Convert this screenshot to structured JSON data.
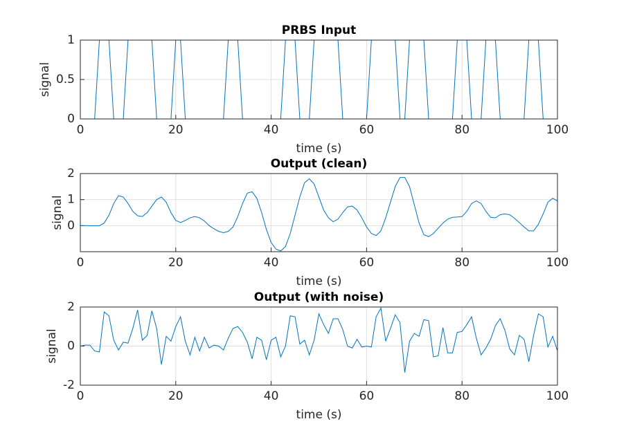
{
  "chart_data": [
    {
      "type": "line",
      "title": "PRBS Input",
      "xlabel": "time (s)",
      "ylabel": "signal",
      "color": "#0072bd",
      "grid": true,
      "xlim": [
        0,
        100
      ],
      "xticks": [
        0,
        20,
        40,
        60,
        80,
        100
      ],
      "ylim": [
        0,
        1
      ],
      "yticks": [
        0,
        0.5,
        1
      ],
      "x": [
        0,
        1,
        2,
        3,
        4,
        5,
        6,
        7,
        8,
        9,
        10,
        11,
        12,
        13,
        14,
        15,
        16,
        17,
        18,
        19,
        20,
        21,
        22,
        23,
        24,
        25,
        26,
        27,
        28,
        29,
        30,
        31,
        32,
        33,
        34,
        35,
        36,
        37,
        38,
        39,
        40,
        41,
        42,
        43,
        44,
        45,
        46,
        47,
        48,
        49,
        50,
        51,
        52,
        53,
        54,
        55,
        56,
        57,
        58,
        59,
        60,
        61,
        62,
        63,
        64,
        65,
        66,
        67,
        68,
        69,
        70,
        71,
        72,
        73,
        74,
        75,
        76,
        77,
        78,
        79,
        80,
        81,
        82,
        83,
        84,
        85,
        86,
        87,
        88,
        89,
        90,
        91,
        92,
        93,
        94,
        95,
        96,
        97,
        98,
        99,
        100
      ],
      "values": [
        0,
        0,
        0,
        0,
        1,
        1,
        1,
        0,
        0,
        0,
        1,
        1,
        1,
        1,
        1,
        1,
        0,
        0,
        0,
        0,
        1,
        1,
        0,
        0,
        0,
        0,
        0,
        0,
        0,
        0,
        0,
        1,
        1,
        1,
        0,
        0,
        0,
        0,
        0,
        0,
        0,
        0,
        0,
        1,
        1,
        1,
        0,
        0,
        0,
        1,
        1,
        1,
        1,
        1,
        1,
        0,
        0,
        0,
        0,
        0,
        0,
        1,
        1,
        1,
        1,
        1,
        1,
        0,
        0,
        1,
        1,
        1,
        1,
        0,
        0,
        0,
        0,
        0,
        0,
        1,
        1,
        1,
        0,
        0,
        0,
        1,
        1,
        1,
        0,
        0,
        0,
        0,
        0,
        0,
        1,
        1,
        1,
        0,
        0,
        0,
        0
      ]
    },
    {
      "type": "line",
      "title": "Output (clean)",
      "xlabel": "time (s)",
      "ylabel": "signal",
      "color": "#0072bd",
      "grid": true,
      "xlim": [
        0,
        100
      ],
      "xticks": [
        0,
        20,
        40,
        60,
        80,
        100
      ],
      "ylim": [
        -1,
        2
      ],
      "yticks": [
        0,
        1,
        2
      ],
      "x": [
        0,
        1,
        2,
        3,
        4,
        5,
        6,
        7,
        8,
        9,
        10,
        11,
        12,
        13,
        14,
        15,
        16,
        17,
        18,
        19,
        20,
        21,
        22,
        23,
        24,
        25,
        26,
        27,
        28,
        29,
        30,
        31,
        32,
        33,
        34,
        35,
        36,
        37,
        38,
        39,
        40,
        41,
        42,
        43,
        44,
        45,
        46,
        47,
        48,
        49,
        50,
        51,
        52,
        53,
        54,
        55,
        56,
        57,
        58,
        59,
        60,
        61,
        62,
        63,
        64,
        65,
        66,
        67,
        68,
        69,
        70,
        71,
        72,
        73,
        74,
        75,
        76,
        77,
        78,
        79,
        80,
        81,
        82,
        83,
        84,
        85,
        86,
        87,
        88,
        89,
        90,
        91,
        92,
        93,
        94,
        95,
        96,
        97,
        98,
        99,
        100
      ],
      "values": [
        0,
        0,
        0,
        0,
        0,
        0.1,
        0.4,
        0.85,
        1.15,
        1.1,
        0.85,
        0.55,
        0.38,
        0.35,
        0.5,
        0.75,
        1.0,
        1.1,
        0.9,
        0.5,
        0.2,
        0.12,
        0.2,
        0.3,
        0.35,
        0.3,
        0.18,
        0.0,
        -0.12,
        -0.22,
        -0.27,
        -0.22,
        -0.05,
        0.35,
        0.85,
        1.25,
        1.3,
        1.05,
        0.5,
        -0.15,
        -0.65,
        -0.9,
        -0.97,
        -0.8,
        -0.3,
        0.4,
        1.1,
        1.65,
        1.8,
        1.6,
        1.1,
        0.6,
        0.3,
        0.15,
        0.25,
        0.5,
        0.72,
        0.75,
        0.6,
        0.3,
        -0.05,
        -0.3,
        -0.38,
        -0.2,
        0.3,
        0.9,
        1.5,
        1.85,
        1.85,
        1.5,
        0.8,
        0.1,
        -0.35,
        -0.42,
        -0.3,
        -0.1,
        0.1,
        0.25,
        0.32,
        0.33,
        0.35,
        0.55,
        0.85,
        0.95,
        0.85,
        0.55,
        0.32,
        0.3,
        0.42,
        0.45,
        0.42,
        0.28,
        0.12,
        -0.05,
        -0.2,
        -0.2,
        0.05,
        0.45,
        0.9,
        1.05,
        0.95
      ]
    },
    {
      "type": "line",
      "title": "Output (with noise)",
      "xlabel": "time (s)",
      "ylabel": "signal",
      "color": "#0072bd",
      "grid": true,
      "xlim": [
        0,
        100
      ],
      "xticks": [
        0,
        20,
        40,
        60,
        80,
        100
      ],
      "ylim": [
        -2,
        2
      ],
      "yticks": [
        -2,
        0,
        2
      ],
      "x": [
        0,
        1,
        2,
        3,
        4,
        5,
        6,
        7,
        8,
        9,
        10,
        11,
        12,
        13,
        14,
        15,
        16,
        17,
        18,
        19,
        20,
        21,
        22,
        23,
        24,
        25,
        26,
        27,
        28,
        29,
        30,
        31,
        32,
        33,
        34,
        35,
        36,
        37,
        38,
        39,
        40,
        41,
        42,
        43,
        44,
        45,
        46,
        47,
        48,
        49,
        50,
        51,
        52,
        53,
        54,
        55,
        56,
        57,
        58,
        59,
        60,
        61,
        62,
        63,
        64,
        65,
        66,
        67,
        68,
        69,
        70,
        71,
        72,
        73,
        74,
        75,
        76,
        77,
        78,
        79,
        80,
        81,
        82,
        83,
        84,
        85,
        86,
        87,
        88,
        89,
        90,
        91,
        92,
        93,
        94,
        95,
        96,
        97,
        98,
        99,
        100
      ],
      "values": [
        0,
        0.05,
        0.05,
        -0.25,
        -0.3,
        1.75,
        1.55,
        0.3,
        -0.2,
        0.2,
        0.15,
        0.9,
        1.85,
        0.3,
        0.55,
        1.8,
        0.9,
        -0.95,
        0.5,
        0.25,
        1.0,
        1.5,
        0.25,
        -0.45,
        0.45,
        -0.25,
        0.45,
        -0.1,
        0.05,
        0.0,
        -0.2,
        0.4,
        0.9,
        1.0,
        0.7,
        0.2,
        -0.65,
        0.45,
        0.3,
        -0.7,
        0.3,
        0.45,
        -0.55,
        0.0,
        1.55,
        1.5,
        0.1,
        0.3,
        -0.45,
        0.3,
        1.65,
        1.1,
        0.65,
        1.4,
        1.4,
        0.85,
        0.0,
        -0.1,
        0.35,
        -0.05,
        0.0,
        -0.05,
        1.5,
        1.95,
        0.25,
        0.9,
        1.6,
        1.2,
        -1.35,
        0.25,
        0.65,
        0.5,
        1.35,
        1.3,
        -0.55,
        -0.5,
        0.95,
        -0.35,
        -0.35,
        0.7,
        0.75,
        1.1,
        1.5,
        0.4,
        -0.45,
        -0.1,
        0.35,
        1.05,
        1.4,
        0.8,
        -0.15,
        -0.45,
        0.55,
        0.35,
        -0.8,
        0.55,
        1.65,
        1.5,
        -0.05,
        0.5,
        -0.25
      ]
    }
  ]
}
